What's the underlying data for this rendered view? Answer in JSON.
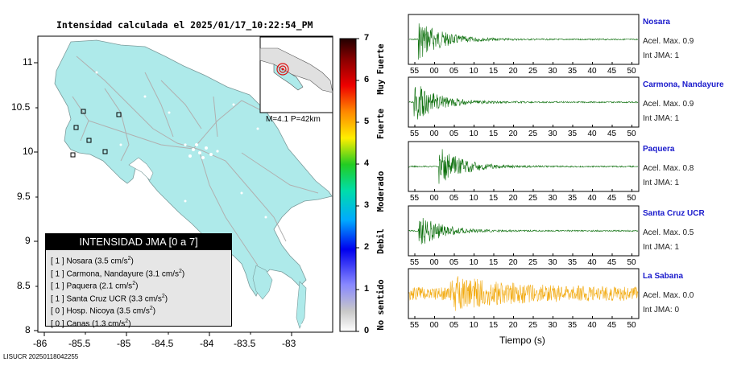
{
  "map": {
    "title": "Intensidad calculada el 2025/01/17_10:22:54_PM",
    "x_ticks": [
      "-86",
      "-85.5",
      "-85",
      "-84.5",
      "-84",
      "-83.5",
      "-83"
    ],
    "y_ticks": [
      "11",
      "10.5",
      "10",
      "9.5",
      "9",
      "8.5",
      "8"
    ],
    "inset_label": "M=4.1 P=42km",
    "footer": "LISUCR 20250118042255",
    "land_color": "#aeeaea",
    "epicenter_color": "#dd1111"
  },
  "colorbar": {
    "ticks": [
      "0",
      "1",
      "2",
      "3",
      "4",
      "5",
      "6",
      "7"
    ],
    "labels": [
      "No sentido",
      "Debil",
      "Moderado",
      "Fuerte",
      "Muy Fuerte"
    ]
  },
  "legend": {
    "title": "INTENSIDAD JMA [0 a 7]",
    "rows": [
      {
        "level": "[ 1 ]",
        "name": "Nosara",
        "accel": "(3.5 cm/s",
        "exp": "2",
        "close": ")"
      },
      {
        "level": "[ 1 ]",
        "name": "Carmona, Nandayure",
        "accel": "(3.1 cm/s",
        "exp": "2",
        "close": ")"
      },
      {
        "level": "[ 1 ]",
        "name": "Paquera",
        "accel": "(2.1 cm/s",
        "exp": "2",
        "close": ")"
      },
      {
        "level": "[ 1 ]",
        "name": "Santa Cruz UCR",
        "accel": "(3.3 cm/s",
        "exp": "2",
        "close": ")"
      },
      {
        "level": "[ 0 ]",
        "name": "Hosp. Nicoya",
        "accel": "(3.5 cm/s",
        "exp": "2",
        "close": ")"
      },
      {
        "level": "[ 0 ]",
        "name": "Canas",
        "accel": "(1.3 cm/s",
        "exp": "2",
        "close": ")"
      }
    ]
  },
  "seismograms": {
    "time_ticks": [
      "55",
      "00",
      "05",
      "10",
      "15",
      "20",
      "25",
      "30",
      "35",
      "40",
      "45",
      "50"
    ],
    "xlabel": "Tiempo (s)",
    "stations": [
      {
        "name": "Nosara",
        "accel": "Acel. Max. 0.9",
        "int": "Int JMA: 1",
        "color": "#0a6e0a",
        "onset": 0.04,
        "amp": 0.9
      },
      {
        "name": "Carmona, Nandayure",
        "accel": "Acel. Max. 0.9",
        "int": "Int JMA: 1",
        "color": "#0a6e0a",
        "onset": 0.02,
        "amp": 0.9
      },
      {
        "name": "Paquera",
        "accel": "Acel. Max. 0.8",
        "int": "Int JMA: 1",
        "color": "#0a6e0a",
        "onset": 0.13,
        "amp": 0.85
      },
      {
        "name": "Santa Cruz UCR",
        "accel": "Acel. Max. 0.5",
        "int": "Int JMA: 1",
        "color": "#0a6e0a",
        "onset": 0.04,
        "amp": 0.7
      },
      {
        "name": "La Sabana",
        "accel": "Acel. Max. 0.0",
        "int": "Int JMA: 0",
        "color": "#f2a90d",
        "onset": 0.18,
        "amp": 0.5
      }
    ]
  }
}
